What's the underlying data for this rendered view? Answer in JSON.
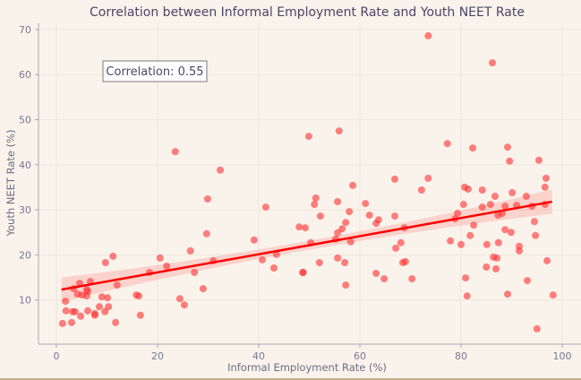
{
  "chart_data": {
    "type": "scatter",
    "title": "Correlation between Informal Employment Rate and Youth NEET Rate",
    "xlabel": "Informal Employment Rate (%)",
    "ylabel": "Youth NEET Rate (%)",
    "xlim": [
      -3.5,
      104
    ],
    "ylim": [
      0,
      72
    ],
    "xticks": [
      0,
      20,
      40,
      60,
      80,
      100
    ],
    "yticks": [
      10,
      20,
      30,
      40,
      50,
      60,
      70
    ],
    "grid": true,
    "annotation": "Correlation: 0.55",
    "colors": {
      "points": "#ff2e2e",
      "fit_line": "#ff0000",
      "band": "#ff3b3b",
      "background": "#faf3ec"
    },
    "regression": {
      "x_start": 1.0,
      "y_start": 12.3,
      "x_end": 98.0,
      "y_end": 31.8,
      "ci_half_width_ends": 2.7,
      "ci_half_width_mid": 1.0
    },
    "points": [
      [
        11.2,
        19.7
      ],
      [
        9.7,
        18.3
      ],
      [
        20.5,
        19.3
      ],
      [
        21.8,
        17.5
      ],
      [
        18.4,
        16.1
      ],
      [
        4.6,
        13.7
      ],
      [
        6.7,
        14.1
      ],
      [
        3.4,
        12.5
      ],
      [
        12.0,
        13.3
      ],
      [
        6.0,
        12.3
      ],
      [
        6.2,
        11.9
      ],
      [
        4.2,
        11.3
      ],
      [
        5.1,
        11.1
      ],
      [
        6.0,
        10.9
      ],
      [
        1.8,
        9.7
      ],
      [
        9.0,
        10.7
      ],
      [
        10.1,
        10.5
      ],
      [
        15.8,
        11.1
      ],
      [
        16.3,
        10.9
      ],
      [
        24.4,
        10.3
      ],
      [
        1.9,
        7.6
      ],
      [
        3.2,
        7.4
      ],
      [
        3.7,
        7.4
      ],
      [
        8.5,
        8.5
      ],
      [
        10.3,
        8.5
      ],
      [
        6.2,
        7.6
      ],
      [
        7.6,
        7.0
      ],
      [
        7.6,
        6.6
      ],
      [
        9.6,
        7.4
      ],
      [
        4.8,
        6.4
      ],
      [
        16.6,
        6.6
      ],
      [
        1.2,
        4.8
      ],
      [
        3.0,
        5.0
      ],
      [
        11.7,
        5.0
      ],
      [
        23.5,
        42.9
      ],
      [
        32.4,
        38.8
      ],
      [
        29.9,
        32.4
      ],
      [
        41.4,
        30.6
      ],
      [
        29.7,
        24.7
      ],
      [
        39.1,
        23.3
      ],
      [
        26.5,
        20.9
      ],
      [
        31.0,
        18.7
      ],
      [
        40.7,
        18.9
      ],
      [
        43.5,
        20.1
      ],
      [
        43.0,
        17.1
      ],
      [
        27.3,
        16.1
      ],
      [
        29.0,
        12.5
      ],
      [
        25.3,
        8.9
      ],
      [
        48.0,
        26.2
      ],
      [
        48.7,
        16.1
      ],
      [
        49.9,
        46.3
      ],
      [
        55.9,
        47.5
      ],
      [
        58.6,
        35.4
      ],
      [
        51.3,
        32.6
      ],
      [
        51.0,
        31.2
      ],
      [
        55.6,
        31.8
      ],
      [
        52.2,
        28.6
      ],
      [
        57.9,
        29.6
      ],
      [
        49.2,
        26.0
      ],
      [
        57.2,
        27.2
      ],
      [
        56.5,
        25.8
      ],
      [
        55.6,
        24.9
      ],
      [
        55.2,
        23.5
      ],
      [
        50.3,
        22.7
      ],
      [
        58.2,
        22.9
      ],
      [
        55.6,
        19.3
      ],
      [
        57.0,
        18.3
      ],
      [
        52.0,
        18.3
      ],
      [
        48.8,
        16.1
      ],
      [
        57.2,
        13.3
      ],
      [
        61.1,
        31.4
      ],
      [
        61.9,
        28.8
      ],
      [
        63.7,
        27.8
      ],
      [
        63.2,
        27.0
      ],
      [
        66.9,
        36.8
      ],
      [
        66.9,
        28.6
      ],
      [
        72.2,
        34.4
      ],
      [
        73.5,
        37.0
      ],
      [
        68.8,
        26.0
      ],
      [
        68.1,
        22.7
      ],
      [
        67.1,
        21.5
      ],
      [
        68.5,
        18.3
      ],
      [
        69.0,
        18.5
      ],
      [
        63.2,
        15.9
      ],
      [
        64.8,
        14.7
      ],
      [
        70.3,
        14.7
      ],
      [
        73.5,
        68.6
      ],
      [
        86.2,
        62.6
      ],
      [
        77.3,
        44.7
      ],
      [
        82.3,
        43.7
      ],
      [
        89.2,
        43.9
      ],
      [
        89.6,
        40.8
      ],
      [
        95.4,
        41.0
      ],
      [
        80.7,
        35.0
      ],
      [
        81.4,
        34.6
      ],
      [
        84.2,
        34.4
      ],
      [
        90.1,
        33.8
      ],
      [
        96.8,
        37.0
      ],
      [
        96.6,
        35.0
      ],
      [
        86.7,
        33.0
      ],
      [
        92.9,
        33.0
      ],
      [
        80.5,
        31.2
      ],
      [
        85.8,
        31.2
      ],
      [
        84.2,
        30.6
      ],
      [
        88.7,
        30.8
      ],
      [
        91.0,
        31.0
      ],
      [
        94.0,
        30.8
      ],
      [
        96.6,
        31.2
      ],
      [
        79.3,
        29.2
      ],
      [
        78.8,
        28.0
      ],
      [
        87.3,
        28.8
      ],
      [
        88.1,
        29.2
      ],
      [
        94.5,
        27.4
      ],
      [
        82.5,
        26.6
      ],
      [
        88.7,
        25.6
      ],
      [
        89.9,
        25.0
      ],
      [
        94.7,
        24.3
      ],
      [
        81.8,
        24.3
      ],
      [
        77.9,
        23.1
      ],
      [
        80.0,
        22.3
      ],
      [
        85.1,
        22.3
      ],
      [
        87.4,
        22.7
      ],
      [
        91.5,
        21.9
      ],
      [
        91.5,
        20.9
      ],
      [
        86.4,
        19.5
      ],
      [
        87.1,
        19.3
      ],
      [
        97.0,
        18.7
      ],
      [
        85.0,
        17.3
      ],
      [
        86.9,
        16.9
      ],
      [
        80.9,
        14.9
      ],
      [
        93.1,
        14.3
      ],
      [
        81.2,
        10.9
      ],
      [
        89.2,
        11.3
      ],
      [
        98.2,
        11.1
      ],
      [
        95.0,
        3.6
      ]
    ]
  }
}
